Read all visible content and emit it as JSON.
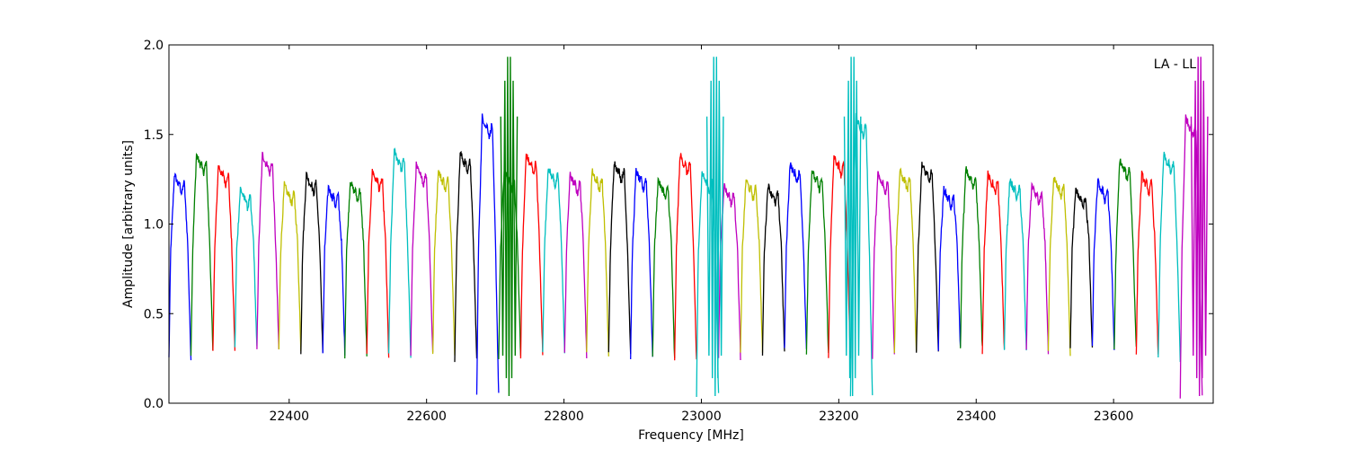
{
  "chart_data": {
    "type": "line",
    "xlabel": "Frequency [MHz]",
    "ylabel": "Amplitude [arbitrary units]",
    "xlim": [
      22225,
      23745
    ],
    "ylim": [
      0.0,
      2.0
    ],
    "x_ticks": [
      22400,
      22600,
      22800,
      23000,
      23200,
      23400,
      23600
    ],
    "y_ticks": [
      0.0,
      0.5,
      1.0,
      1.5,
      2.0
    ],
    "x_tick_labels": [
      "22400",
      "22600",
      "22800",
      "23000",
      "23200",
      "23400",
      "23600"
    ],
    "y_tick_labels": [
      "0.0",
      "0.5",
      "1.0",
      "1.5",
      "2.0"
    ],
    "annotation": "LA - LL",
    "annotation_position": "top-right",
    "grid": false,
    "legend": false,
    "color_cycle": [
      "#0000ff",
      "#008000",
      "#ff0000",
      "#00bfbf",
      "#bf00bf",
      "#bfbf00",
      "#000000"
    ],
    "channel_width_mhz": 32,
    "channel_start_mhz": 22225,
    "channel_count": 47,
    "channel_peak_amplitudes": [
      1.28,
      1.39,
      1.33,
      1.2,
      1.39,
      1.22,
      1.28,
      1.21,
      1.24,
      1.3,
      1.41,
      1.33,
      1.3,
      1.4,
      1.6,
      1.3,
      1.39,
      1.32,
      1.28,
      1.3,
      1.35,
      1.3,
      1.25,
      1.39,
      1.29,
      1.22,
      1.25,
      1.22,
      1.34,
      1.3,
      1.38,
      1.6,
      1.28,
      1.3,
      1.34,
      1.2,
      1.31,
      1.28,
      1.25,
      1.22,
      1.26,
      1.2,
      1.24,
      1.36,
      1.28,
      1.39,
      1.6
    ],
    "channel_dip_minima": [
      0.25,
      0.28,
      0.3,
      0.3,
      0.3,
      0.3,
      0.29,
      0.28,
      0.27,
      0.26,
      0.27,
      0.28,
      0.26,
      0.24,
      0.04,
      0.26,
      0.27,
      0.28,
      0.27,
      0.28,
      0.27,
      0.26,
      0.24,
      0.23,
      0.04,
      0.26,
      0.27,
      0.28,
      0.3,
      0.27,
      0.24,
      0.04,
      0.26,
      0.28,
      0.3,
      0.3,
      0.3,
      0.29,
      0.3,
      0.28,
      0.28,
      0.3,
      0.3,
      0.3,
      0.27,
      0.24,
      0.04
    ],
    "rfi_spikes": [
      {
        "x": 22720,
        "min": 0.04,
        "max": 2.0
      },
      {
        "x": 23020,
        "min": 0.04,
        "max": 2.0
      },
      {
        "x": 23220,
        "min": 0.04,
        "max": 2.0
      },
      {
        "x": 23725,
        "min": 0.04,
        "max": 2.0
      }
    ]
  }
}
